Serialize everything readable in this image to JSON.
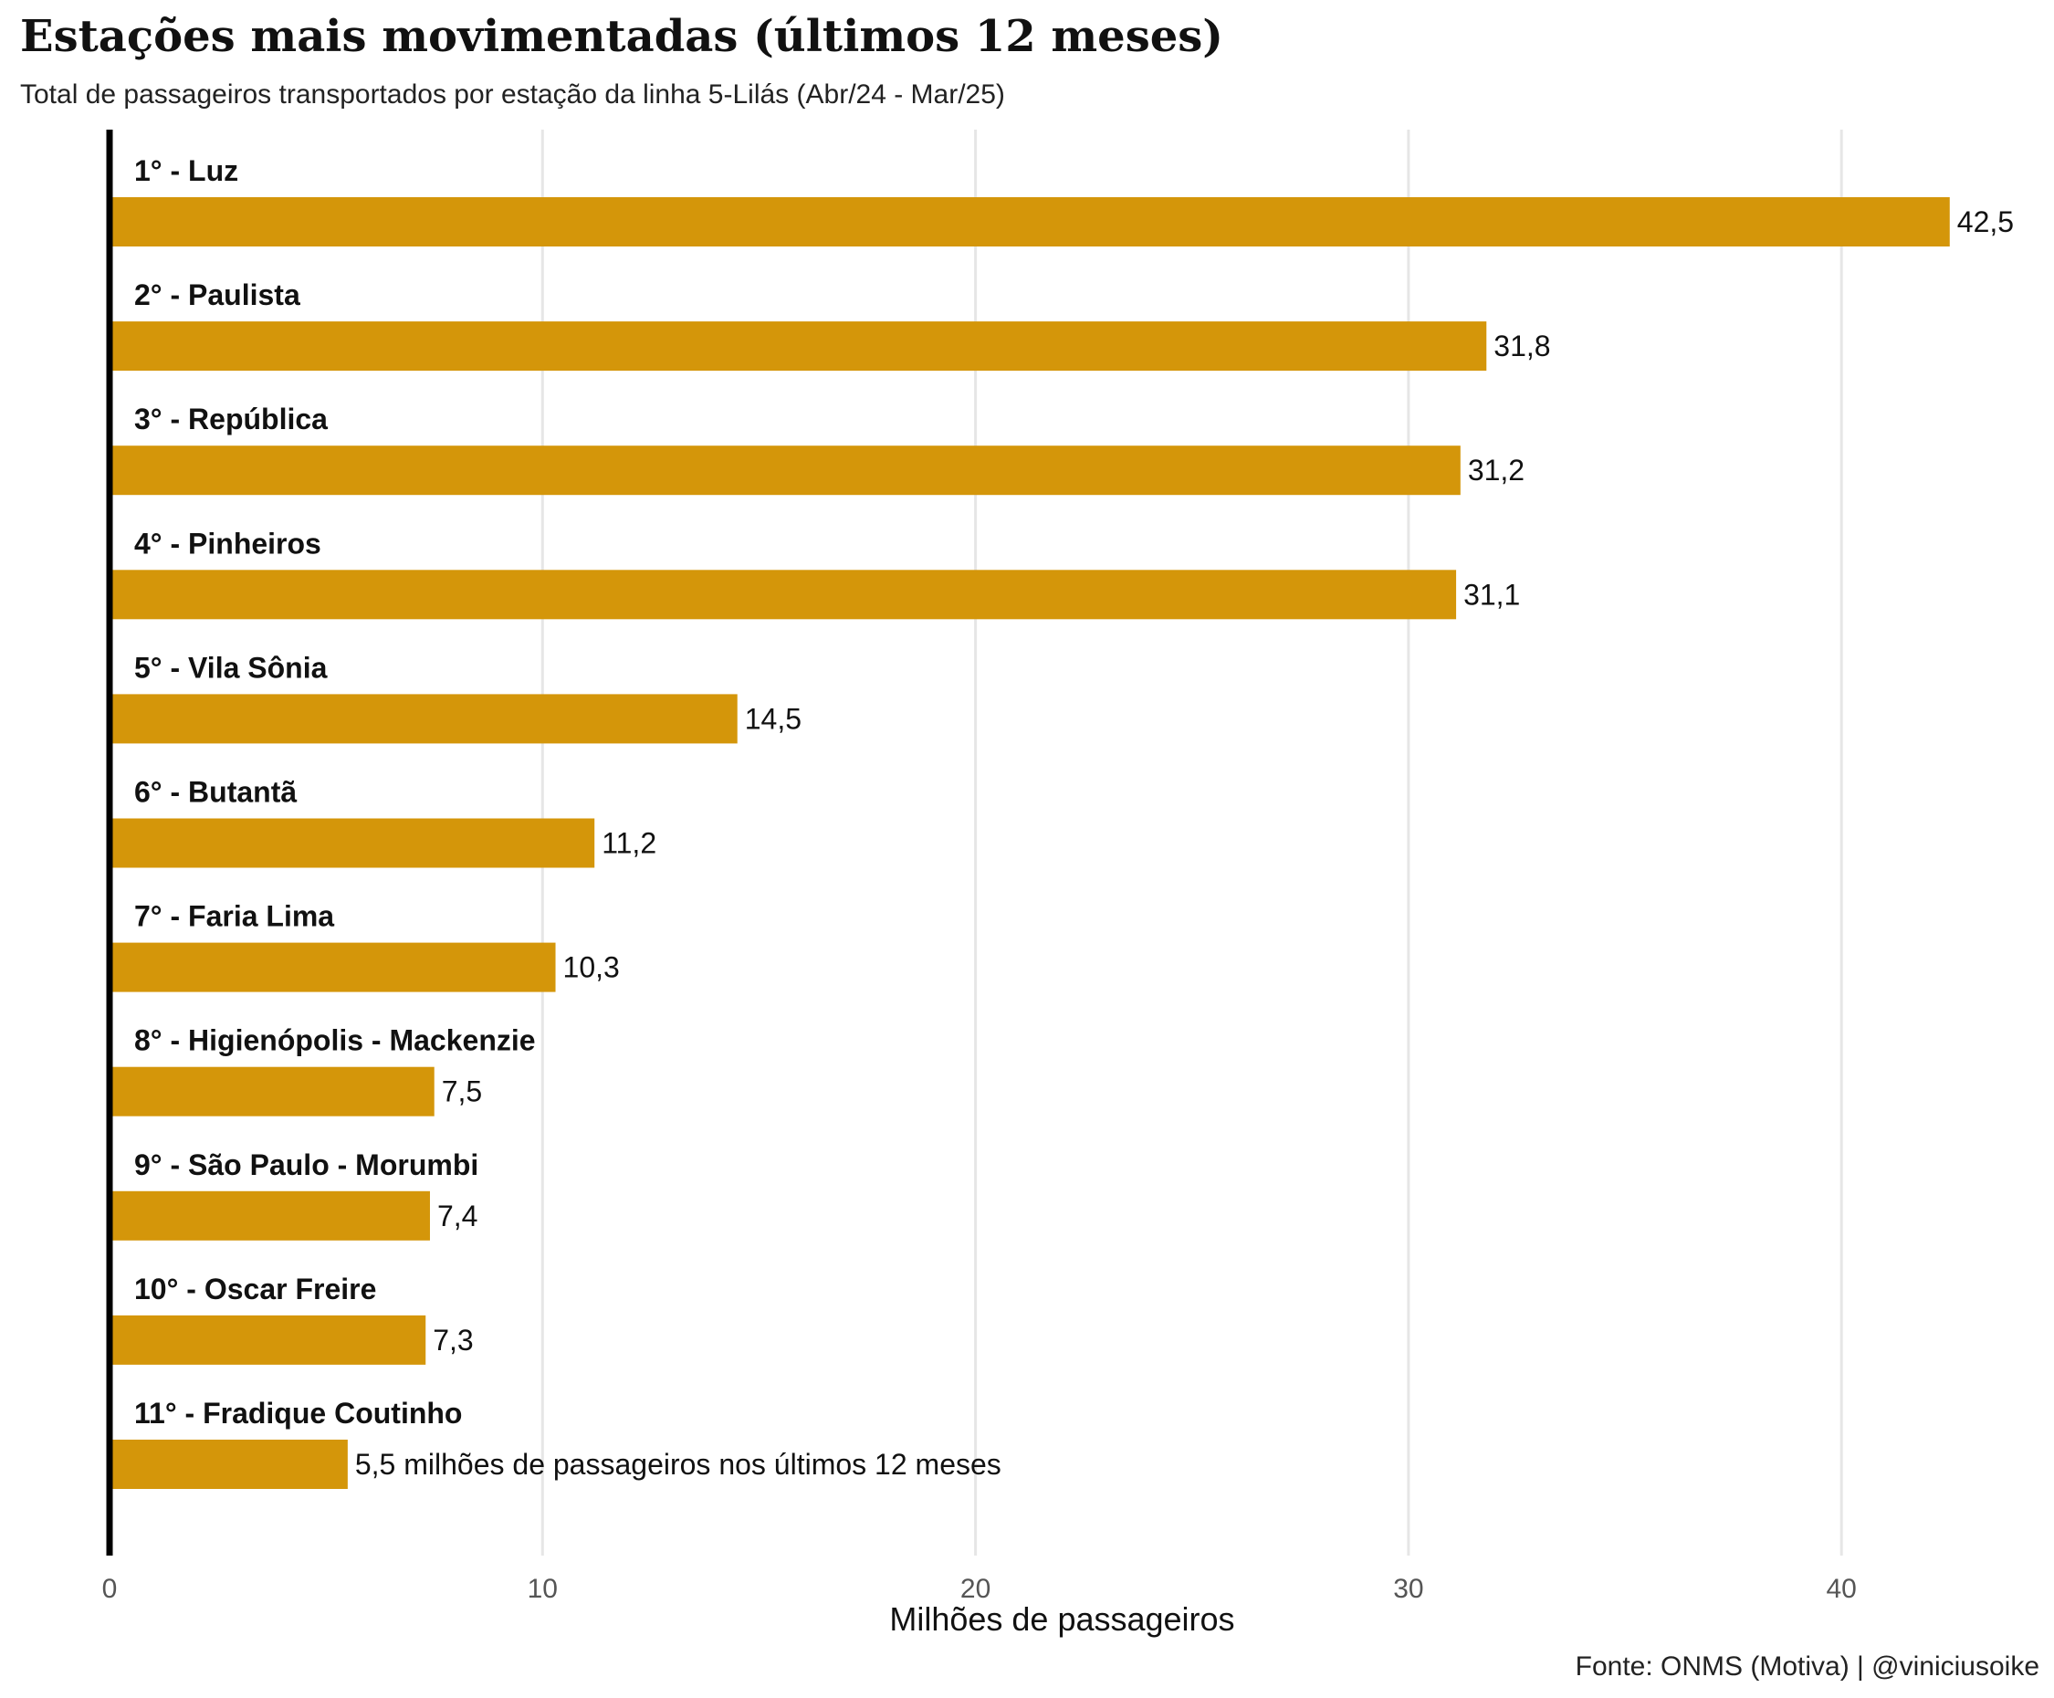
{
  "header": {
    "title": "Estações mais movimentadas (últimos 12 meses)",
    "subtitle": "Total de passageiros transportados por estação da linha 5-Lilás (Abr/24 - Mar/25)"
  },
  "footer": {
    "caption": "Fonte: ONMS (Motiva) | @viniciusoike"
  },
  "colors": {
    "bar": "#D4960A",
    "grid": "#E6E6E6",
    "axis": "#000000",
    "tick_text": "#555555"
  },
  "chart_data": {
    "type": "bar",
    "orientation": "horizontal",
    "title": "Estações mais movimentadas (últimos 12 meses)",
    "xlabel": "Milhões de passageiros",
    "ylabel": "",
    "xlim": [
      0,
      44
    ],
    "xticks": [
      0,
      10,
      20,
      30,
      40
    ],
    "grid": true,
    "categories": [
      "1° - Luz",
      "2° - Paulista",
      "3° - República",
      "4° - Pinheiros",
      "5° - Vila Sônia",
      "6° - Butantã",
      "7° - Faria Lima",
      "8° - Higienópolis - Mackenzie",
      "9° - São Paulo - Morumbi",
      "10° - Oscar Freire",
      "11° - Fradique Coutinho"
    ],
    "values": [
      42.5,
      31.8,
      31.2,
      31.1,
      14.5,
      11.2,
      10.3,
      7.5,
      7.4,
      7.3,
      5.5
    ],
    "data_labels": [
      "42,5",
      "31,8",
      "31,2",
      "31,1",
      "14,5",
      "11,2",
      "10,3",
      "7,5",
      "7,4",
      "7,3",
      "5,5 milhões de passageiros nos últimos 12 meses"
    ]
  }
}
